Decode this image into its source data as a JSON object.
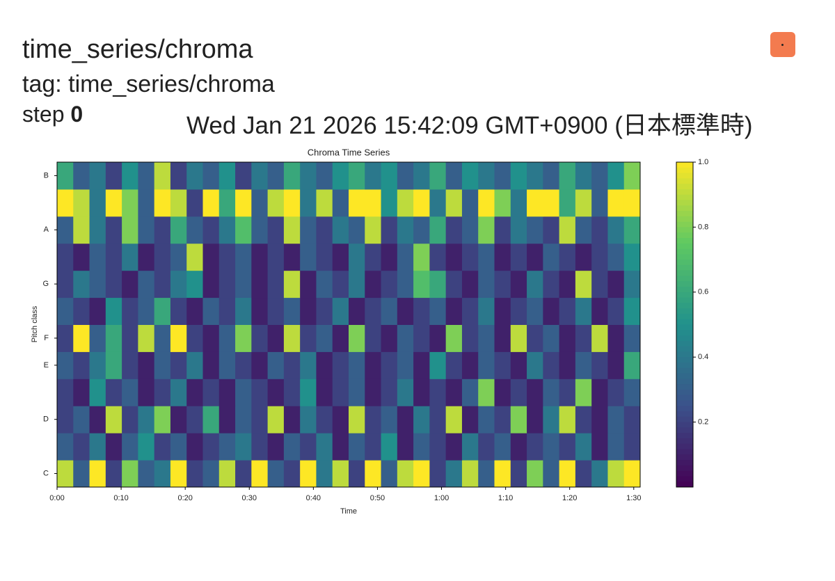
{
  "header": {
    "title": "time_series/chroma",
    "tag": "tag: time_series/chroma",
    "step_label": "step",
    "step": "0",
    "timestamp": "Wed Jan 21 2026 15:42:09 GMT+0900 (日本標準時)"
  },
  "chart_data": {
    "type": "heatmap",
    "title": "Chroma Time Series",
    "x_label": "Time",
    "y_label": "Pitch class",
    "xlim": [
      0,
      91
    ],
    "xticks": [
      {
        "value": 0,
        "label": "0:00"
      },
      {
        "value": 10,
        "label": "0:10"
      },
      {
        "value": 20,
        "label": "0:20"
      },
      {
        "value": 30,
        "label": "0:30"
      },
      {
        "value": 40,
        "label": "0:40"
      },
      {
        "value": 50,
        "label": "0:50"
      },
      {
        "value": 60,
        "label": "1:00"
      },
      {
        "value": 70,
        "label": "1:10"
      },
      {
        "value": 80,
        "label": "1:20"
      },
      {
        "value": 90,
        "label": "1:30"
      }
    ],
    "ylim": [
      -0.5,
      11.5
    ],
    "yticks": [
      {
        "value": 0,
        "label": "C"
      },
      {
        "value": 2,
        "label": "D"
      },
      {
        "value": 4,
        "label": "E"
      },
      {
        "value": 5,
        "label": "F"
      },
      {
        "value": 7,
        "label": "G"
      },
      {
        "value": 9,
        "label": "A"
      },
      {
        "value": 11,
        "label": "B"
      }
    ],
    "colormap": [
      "#440154",
      "#3b528b",
      "#21918c",
      "#5ec962",
      "#fde725"
    ],
    "clim": [
      0,
      1
    ],
    "cbar_ticks": [
      0.2,
      0.4,
      0.6,
      0.8,
      {
        "value": 1,
        "label": "1.0"
      }
    ],
    "z": [
      [
        0.9,
        0.3,
        1.0,
        0.2,
        0.8,
        0.3,
        0.4,
        1.0,
        0.2,
        0.3,
        0.9,
        0.2,
        1.0,
        0.3,
        0.2,
        1.0,
        0.4,
        0.9,
        0.2,
        1.0,
        0.3,
        0.9,
        1.0,
        0.2,
        0.4,
        0.9,
        0.3,
        1.0,
        0.2,
        0.8,
        0.3,
        1.0,
        0.2,
        0.4,
        0.9,
        1.0
      ],
      [
        0.3,
        0.2,
        0.4,
        0.1,
        0.3,
        0.5,
        0.2,
        0.3,
        0.1,
        0.2,
        0.3,
        0.4,
        0.2,
        0.1,
        0.3,
        0.2,
        0.4,
        0.1,
        0.3,
        0.2,
        0.5,
        0.1,
        0.3,
        0.2,
        0.1,
        0.4,
        0.2,
        0.3,
        0.1,
        0.2,
        0.3,
        0.2,
        0.4,
        0.1,
        0.3,
        0.2
      ],
      [
        0.2,
        0.3,
        0.1,
        0.9,
        0.2,
        0.4,
        0.8,
        0.1,
        0.2,
        0.6,
        0.1,
        0.3,
        0.2,
        0.9,
        0.1,
        0.4,
        0.2,
        0.1,
        0.9,
        0.2,
        0.3,
        0.1,
        0.4,
        0.2,
        0.9,
        0.1,
        0.3,
        0.2,
        0.8,
        0.1,
        0.4,
        0.9,
        0.2,
        0.1,
        0.3,
        0.2
      ],
      [
        0.2,
        0.1,
        0.5,
        0.2,
        0.3,
        0.1,
        0.2,
        0.4,
        0.1,
        0.2,
        0.1,
        0.3,
        0.2,
        0.1,
        0.2,
        0.5,
        0.1,
        0.2,
        0.3,
        0.1,
        0.2,
        0.4,
        0.1,
        0.2,
        0.1,
        0.3,
        0.8,
        0.1,
        0.2,
        0.1,
        0.3,
        0.2,
        0.8,
        0.1,
        0.2,
        0.3
      ],
      [
        0.3,
        0.2,
        0.4,
        0.6,
        0.2,
        0.1,
        0.3,
        0.2,
        0.4,
        0.1,
        0.3,
        0.2,
        0.1,
        0.3,
        0.2,
        0.4,
        0.1,
        0.2,
        0.3,
        0.1,
        0.2,
        0.3,
        0.1,
        0.5,
        0.2,
        0.1,
        0.3,
        0.2,
        0.1,
        0.4,
        0.2,
        0.1,
        0.3,
        0.2,
        0.1,
        0.6
      ],
      [
        0.2,
        1.0,
        0.3,
        0.6,
        0.2,
        0.9,
        0.3,
        1.0,
        0.2,
        0.1,
        0.3,
        0.8,
        0.2,
        0.1,
        0.9,
        0.2,
        0.3,
        0.1,
        0.8,
        0.2,
        0.1,
        0.3,
        0.2,
        0.1,
        0.8,
        0.2,
        0.3,
        0.1,
        0.9,
        0.2,
        0.3,
        0.1,
        0.2,
        0.9,
        0.1,
        0.3
      ],
      [
        0.3,
        0.2,
        0.1,
        0.5,
        0.2,
        0.3,
        0.6,
        0.2,
        0.1,
        0.3,
        0.2,
        0.4,
        0.1,
        0.2,
        0.3,
        0.1,
        0.2,
        0.4,
        0.1,
        0.2,
        0.3,
        0.1,
        0.2,
        0.3,
        0.1,
        0.2,
        0.4,
        0.1,
        0.2,
        0.3,
        0.1,
        0.2,
        0.4,
        0.1,
        0.2,
        0.5
      ],
      [
        0.2,
        0.4,
        0.3,
        0.2,
        0.1,
        0.3,
        0.2,
        0.4,
        0.5,
        0.1,
        0.2,
        0.3,
        0.1,
        0.2,
        0.9,
        0.1,
        0.3,
        0.2,
        0.4,
        0.1,
        0.2,
        0.3,
        0.7,
        0.6,
        0.2,
        0.1,
        0.3,
        0.2,
        0.1,
        0.4,
        0.2,
        0.1,
        0.9,
        0.2,
        0.1,
        0.4
      ],
      [
        0.2,
        0.1,
        0.3,
        0.2,
        0.4,
        0.1,
        0.2,
        0.3,
        0.9,
        0.1,
        0.2,
        0.3,
        0.1,
        0.2,
        0.1,
        0.3,
        0.2,
        0.1,
        0.4,
        0.2,
        0.1,
        0.3,
        0.8,
        0.2,
        0.1,
        0.2,
        0.3,
        0.1,
        0.2,
        0.1,
        0.3,
        0.2,
        0.1,
        0.2,
        0.3,
        0.5
      ],
      [
        0.3,
        0.9,
        0.4,
        0.2,
        0.8,
        0.3,
        0.2,
        0.6,
        0.3,
        0.2,
        0.4,
        0.7,
        0.3,
        0.2,
        0.9,
        0.3,
        0.2,
        0.4,
        0.3,
        0.9,
        0.2,
        0.4,
        0.3,
        0.6,
        0.2,
        0.3,
        0.8,
        0.2,
        0.4,
        0.3,
        0.2,
        0.9,
        0.3,
        0.2,
        0.4,
        0.6
      ],
      [
        1.0,
        0.9,
        0.4,
        1.0,
        0.8,
        0.3,
        1.0,
        0.9,
        0.2,
        1.0,
        0.6,
        1.0,
        0.3,
        0.9,
        1.0,
        0.4,
        0.9,
        0.3,
        1.0,
        1.0,
        0.5,
        0.9,
        1.0,
        0.4,
        0.9,
        0.3,
        1.0,
        0.8,
        0.4,
        1.0,
        1.0,
        0.6,
        0.9,
        0.3,
        1.0,
        1.0
      ],
      [
        0.6,
        0.3,
        0.4,
        0.2,
        0.5,
        0.3,
        0.9,
        0.2,
        0.4,
        0.3,
        0.5,
        0.2,
        0.4,
        0.3,
        0.6,
        0.4,
        0.3,
        0.5,
        0.6,
        0.4,
        0.5,
        0.3,
        0.4,
        0.6,
        0.3,
        0.5,
        0.4,
        0.3,
        0.5,
        0.4,
        0.3,
        0.6,
        0.4,
        0.3,
        0.5,
        0.8
      ]
    ]
  }
}
